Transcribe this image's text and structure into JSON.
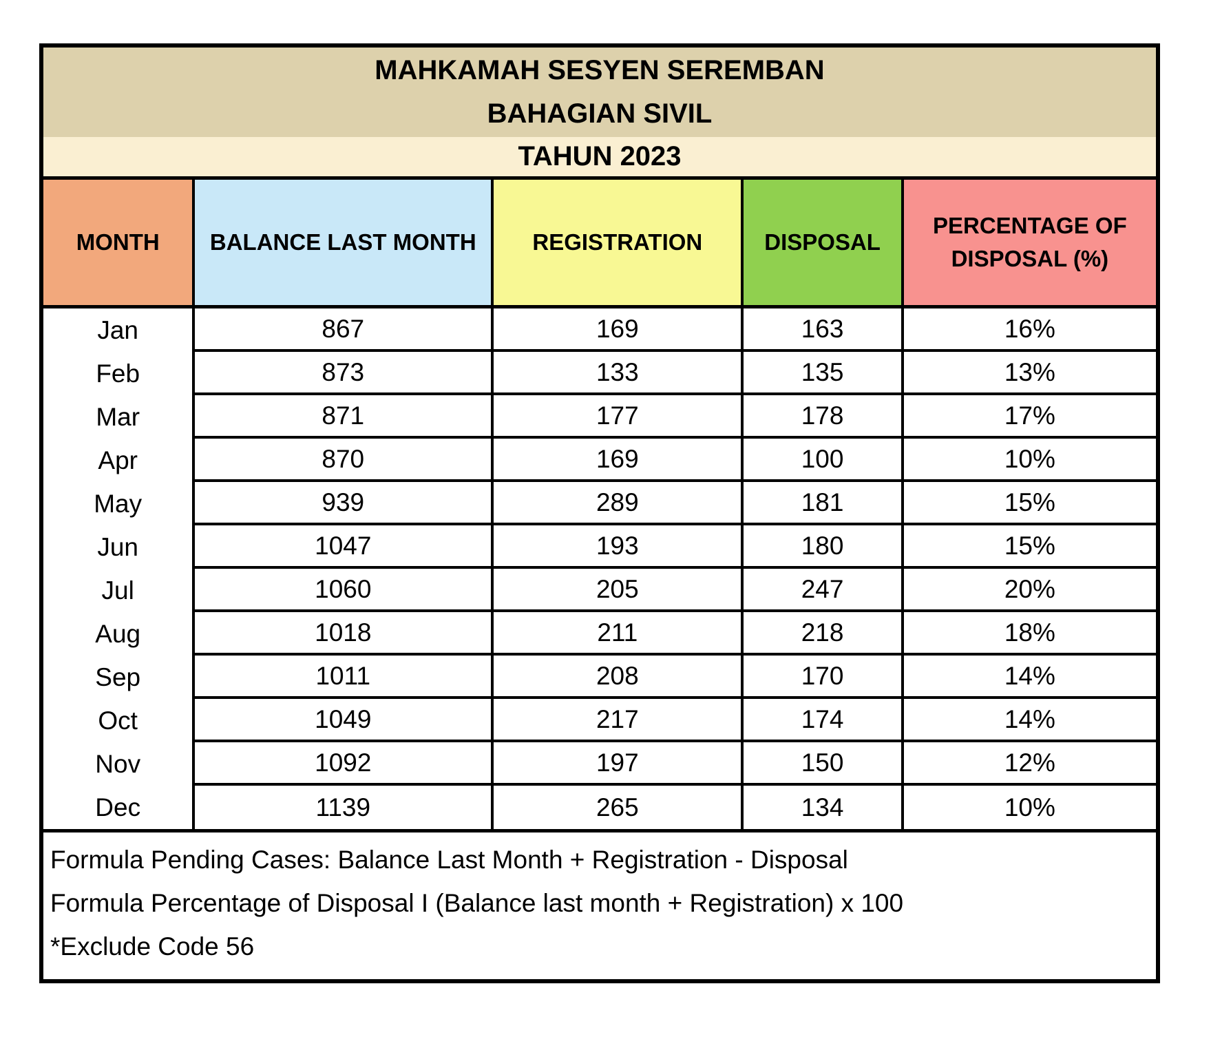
{
  "title": {
    "line1": "MAHKAMAH SESYEN SEREMBAN",
    "line2": "BAHAGIAN SIVIL",
    "year": "TAHUN 2023"
  },
  "chart_data": {
    "type": "table",
    "columns": [
      "MONTH",
      "BALANCE LAST MONTH",
      "REGISTRATION",
      "DISPOSAL",
      "PERCENTAGE OF DISPOSAL (%)"
    ],
    "rows": [
      {
        "month": "Jan",
        "balance_last_month": 867,
        "registration": 169,
        "disposal": 163,
        "percentage_of_disposal": "16%"
      },
      {
        "month": "Feb",
        "balance_last_month": 873,
        "registration": 133,
        "disposal": 135,
        "percentage_of_disposal": "13%"
      },
      {
        "month": "Mar",
        "balance_last_month": 871,
        "registration": 177,
        "disposal": 178,
        "percentage_of_disposal": "17%"
      },
      {
        "month": "Apr",
        "balance_last_month": 870,
        "registration": 169,
        "disposal": 100,
        "percentage_of_disposal": "10%"
      },
      {
        "month": "May",
        "balance_last_month": 939,
        "registration": 289,
        "disposal": 181,
        "percentage_of_disposal": "15%"
      },
      {
        "month": "Jun",
        "balance_last_month": 1047,
        "registration": 193,
        "disposal": 180,
        "percentage_of_disposal": "15%"
      },
      {
        "month": "Jul",
        "balance_last_month": 1060,
        "registration": 205,
        "disposal": 247,
        "percentage_of_disposal": "20%"
      },
      {
        "month": "Aug",
        "balance_last_month": 1018,
        "registration": 211,
        "disposal": 218,
        "percentage_of_disposal": "18%"
      },
      {
        "month": "Sep",
        "balance_last_month": 1011,
        "registration": 208,
        "disposal": 170,
        "percentage_of_disposal": "14%"
      },
      {
        "month": "Oct",
        "balance_last_month": 1049,
        "registration": 217,
        "disposal": 174,
        "percentage_of_disposal": "14%"
      },
      {
        "month": "Nov",
        "balance_last_month": 1092,
        "registration": 197,
        "disposal": 150,
        "percentage_of_disposal": "12%"
      },
      {
        "month": "Dec",
        "balance_last_month": 1139,
        "registration": 265,
        "disposal": 134,
        "percentage_of_disposal": "10%"
      }
    ]
  },
  "footer": {
    "line1": "Formula Pending Cases: Balance Last Month + Registration - Disposal",
    "line2": "Formula Percentage of Disposal I (Balance last month + Registration) x 100",
    "line3": "*Exclude Code 56"
  },
  "colors": {
    "tan": "#DDD1AC",
    "cream": "#FAEFD2",
    "month": "#F2A87C",
    "balance": "#C9E8F8",
    "registration": "#F8F894",
    "disposal": "#90D04F",
    "percentage": "#F8928F",
    "border": "#000000"
  }
}
